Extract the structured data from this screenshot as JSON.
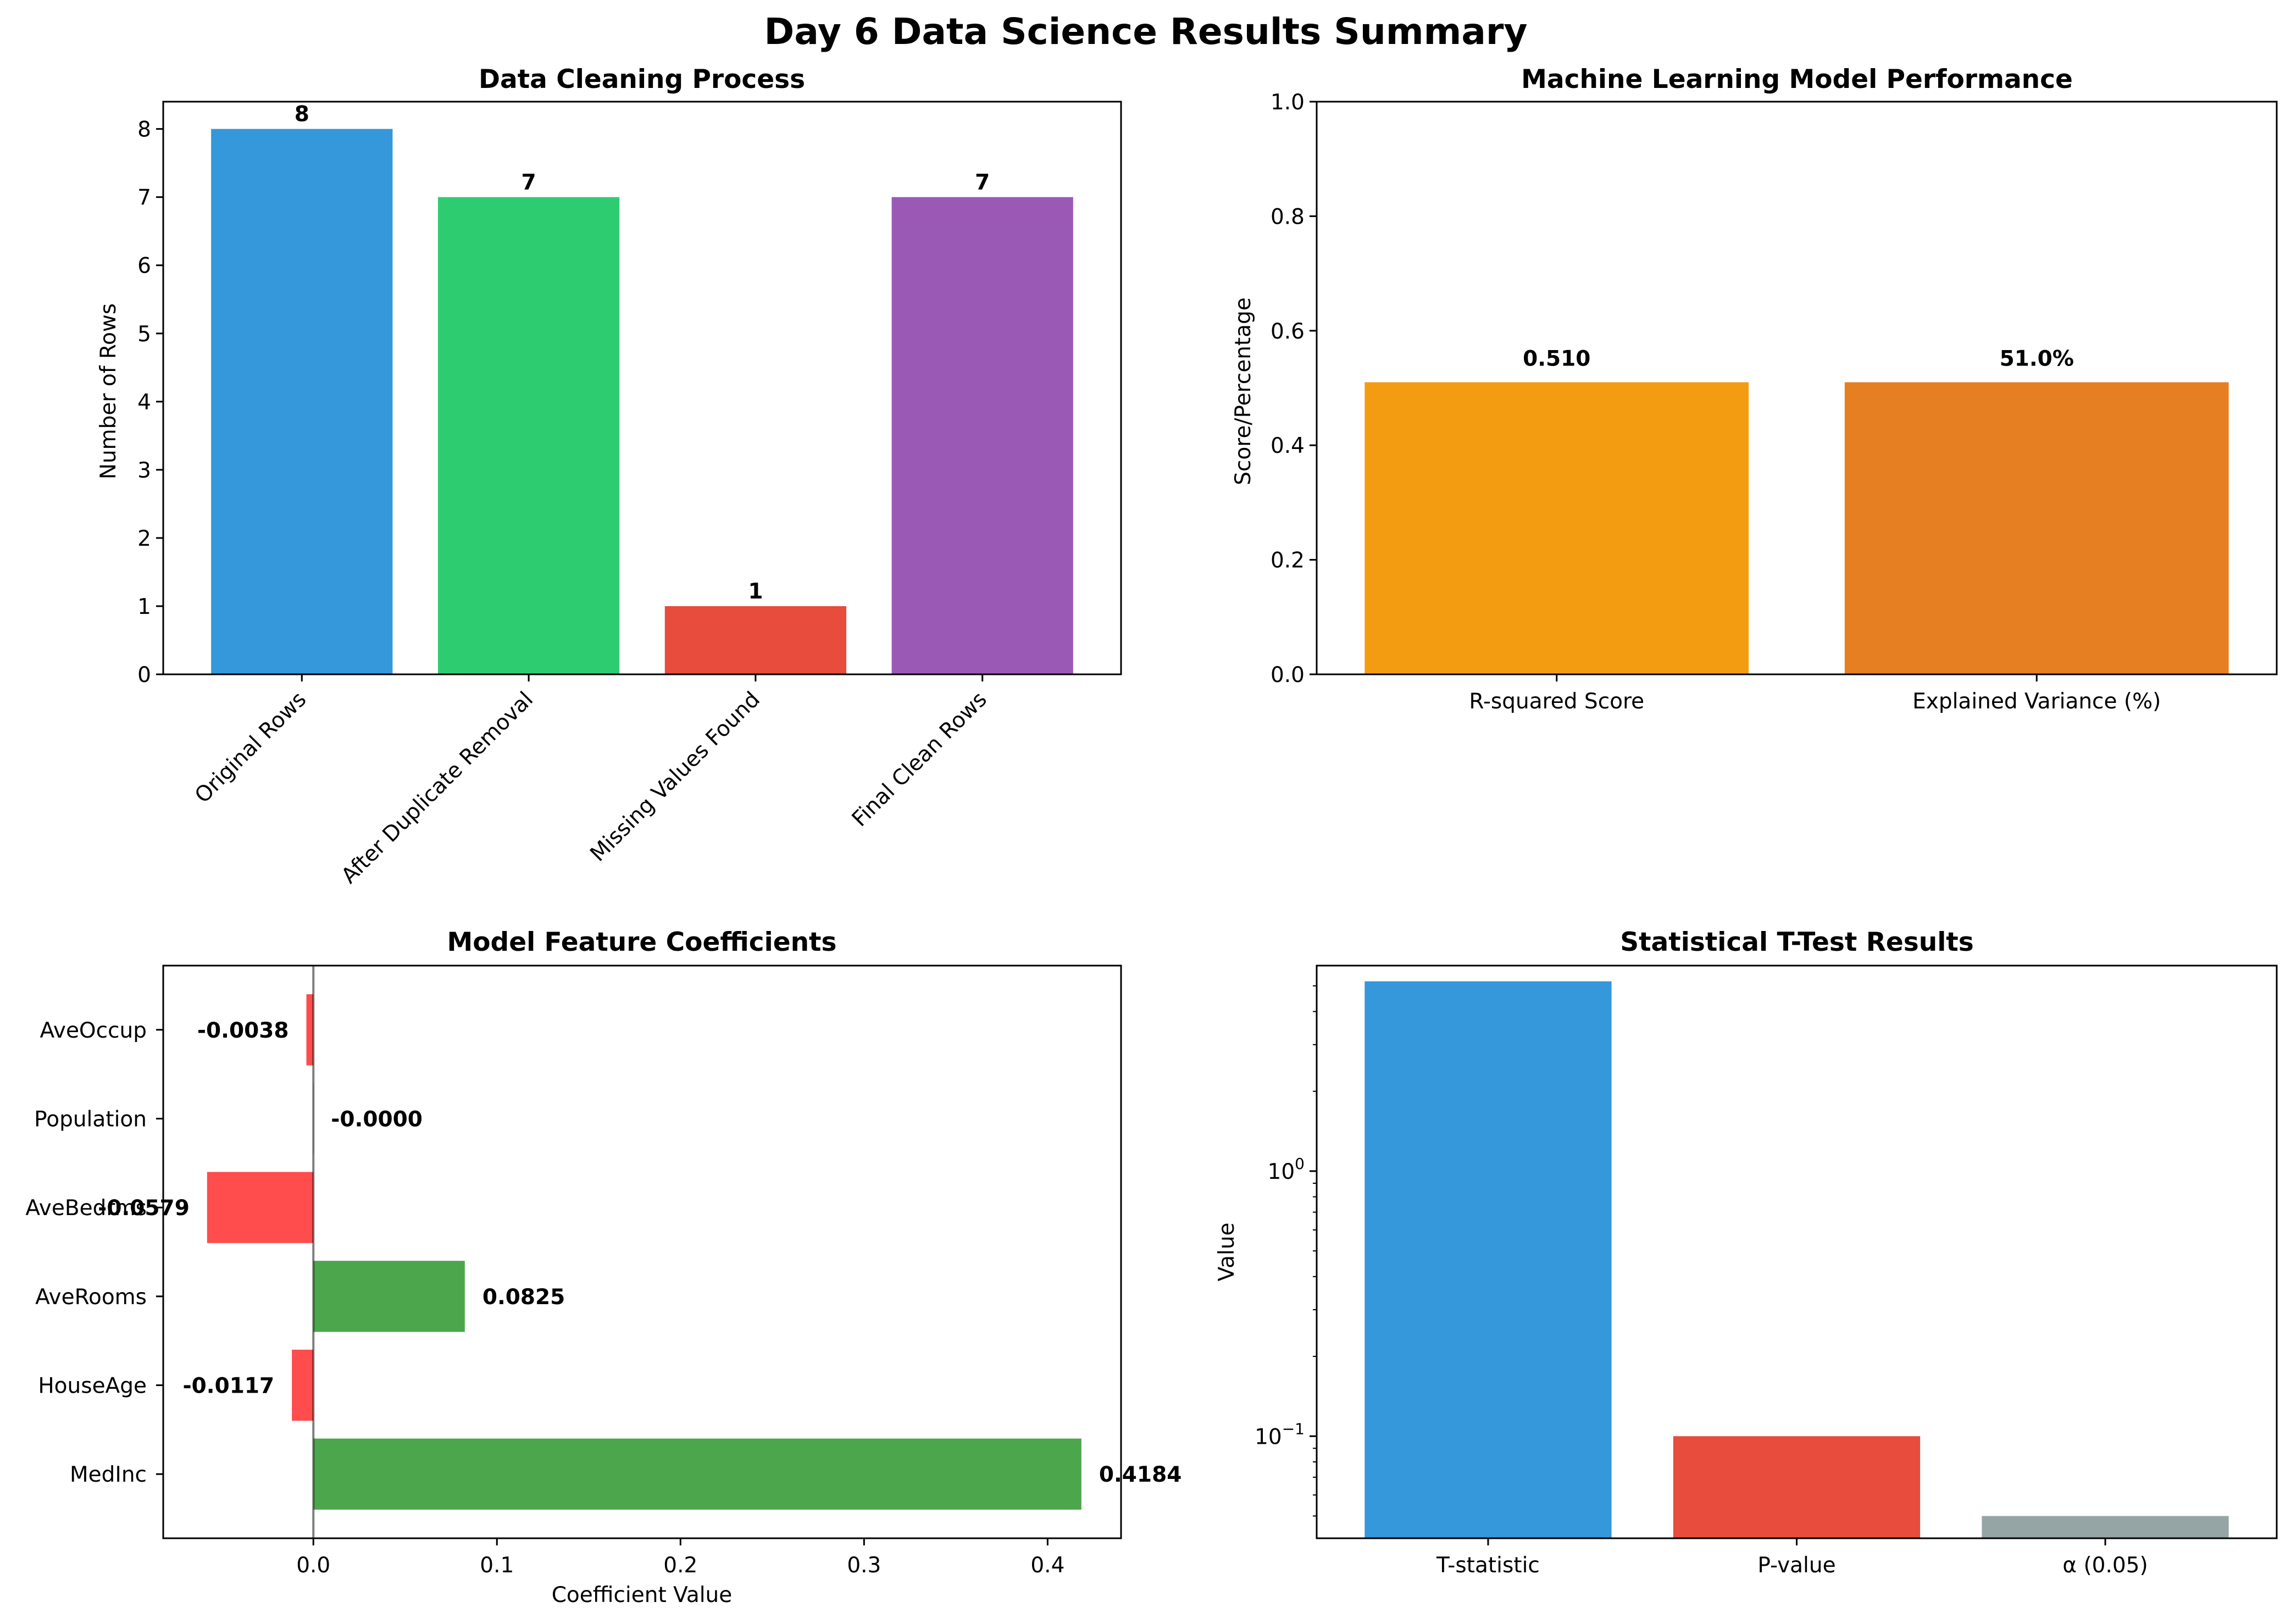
{
  "figure": {
    "title": "Day 6 Data Science Results Summary"
  },
  "chart_data": [
    {
      "id": "cleaning",
      "type": "bar",
      "title": "Data Cleaning Process",
      "xlabel": "",
      "ylabel": "Number of Rows",
      "categories": [
        "Original Rows",
        "After Duplicate Removal",
        "Missing Values Found",
        "Final Clean Rows"
      ],
      "values": [
        8,
        7,
        1,
        7
      ],
      "data_labels": [
        "8",
        "7",
        "1",
        "7"
      ],
      "colors": [
        "#3498db",
        "#2ecc71",
        "#e74c3c",
        "#9b59b6"
      ],
      "ylim": [
        0,
        8.4
      ],
      "yticks": [
        0,
        1,
        2,
        3,
        4,
        5,
        6,
        7,
        8
      ],
      "ytick_labels": [
        "0",
        "1",
        "2",
        "3",
        "4",
        "5",
        "6",
        "7",
        "8"
      ],
      "xtick_rotation": 45,
      "grid": false
    },
    {
      "id": "ml",
      "type": "bar",
      "title": "Machine Learning Model Performance",
      "xlabel": "",
      "ylabel": "Score/Percentage",
      "categories": [
        "R-squared Score",
        "Explained Variance (%)"
      ],
      "values": [
        0.51,
        0.51
      ],
      "data_labels": [
        "0.510",
        "51.0%"
      ],
      "colors": [
        "#f39c12",
        "#e67e22"
      ],
      "ylim": [
        0,
        1.0
      ],
      "yticks": [
        0,
        0.2,
        0.4,
        0.6,
        0.8,
        1.0
      ],
      "ytick_labels": [
        "0.0",
        "0.2",
        "0.4",
        "0.6",
        "0.8",
        "1.0"
      ],
      "grid": false
    },
    {
      "id": "coef",
      "type": "bar",
      "orientation": "horizontal",
      "title": "Model Feature Coefficients",
      "xlabel": "Coefficient Value",
      "ylabel": "",
      "categories": [
        "MedInc",
        "HouseAge",
        "AveRooms",
        "AveBedrms",
        "Population",
        "AveOccup"
      ],
      "values": [
        0.4184,
        -0.0117,
        0.0825,
        -0.0579,
        -0.0,
        -0.0038
      ],
      "data_labels": [
        "0.4184",
        "-0.0117",
        "0.0825",
        "-0.0579",
        "-0.0000",
        "-0.0038"
      ],
      "positive_color": "#4ca64c",
      "negative_color": "#ff4c4c",
      "xlim": [
        -0.0818,
        0.44
      ],
      "xticks": [
        0,
        0.1,
        0.2,
        0.3,
        0.4
      ],
      "xtick_labels": [
        "0.0",
        "0.1",
        "0.2",
        "0.3",
        "0.4"
      ],
      "zero_line": true,
      "grid": false
    },
    {
      "id": "ttest",
      "type": "bar",
      "title": "Statistical T-Test Results",
      "xlabel": "",
      "ylabel": "Value",
      "categories": [
        "T-statistic",
        "P-value",
        "α (0.05)"
      ],
      "values": [
        5.2,
        0.1,
        0.05
      ],
      "colors": [
        "#3498db",
        "#e74c3c",
        "#95a5a6"
      ],
      "yscale": "log",
      "ylim": [
        0.0412,
        5.96
      ],
      "yticks": [
        0.1,
        1
      ],
      "ytick_labels": [
        {
          "base": "10",
          "exp": "−1"
        },
        {
          "base": "10",
          "exp": "0"
        }
      ],
      "grid": false
    }
  ]
}
